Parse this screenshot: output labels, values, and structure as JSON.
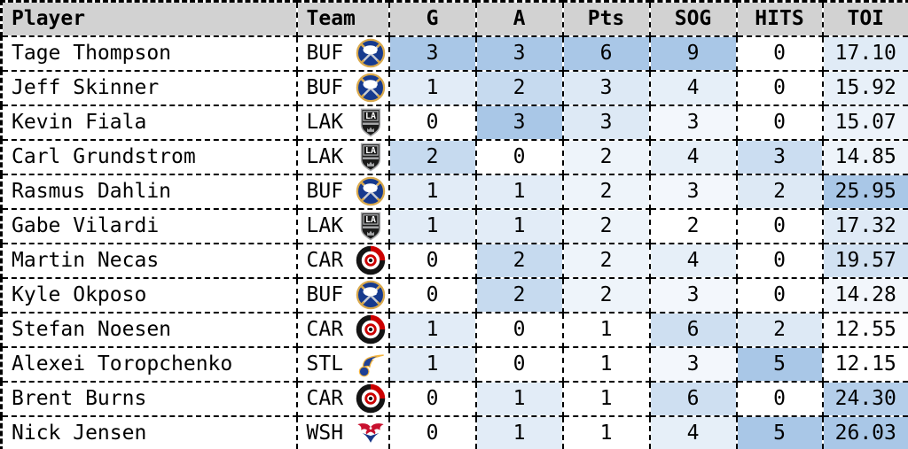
{
  "colors": {
    "header_bg": "#d2d2d2",
    "border": "#000000",
    "text": "#000000",
    "heat_min": "#ffffff",
    "heat_max": "#a9c7e7"
  },
  "team_brand_colors": {
    "BUF": {
      "primary": "#163a8e",
      "accent": "#d9a94c"
    },
    "LAK": {
      "primary": "#1a1a1a",
      "accent": "#a7a8aa"
    },
    "CAR": {
      "primary": "#cc0000",
      "accent": "#141414"
    },
    "STL": {
      "primary": "#1f4096",
      "accent": "#f4b53f"
    },
    "WSH": {
      "primary": "#c8102e",
      "accent": "#19398a"
    }
  },
  "chart_data": {
    "type": "table",
    "columns": [
      {
        "key": "player",
        "label": "Player"
      },
      {
        "key": "team",
        "label": "Team"
      },
      {
        "key": "g",
        "label": "G"
      },
      {
        "key": "a",
        "label": "A"
      },
      {
        "key": "pts",
        "label": "Pts"
      },
      {
        "key": "sog",
        "label": "SOG"
      },
      {
        "key": "hits",
        "label": "HITS"
      },
      {
        "key": "toi",
        "label": "TOI"
      }
    ],
    "rows": [
      {
        "player": "Tage Thompson",
        "team": "BUF",
        "g": 3,
        "a": 3,
        "pts": 6,
        "sog": 9,
        "hits": 0,
        "toi": "17.10"
      },
      {
        "player": "Jeff Skinner",
        "team": "BUF",
        "g": 1,
        "a": 2,
        "pts": 3,
        "sog": 4,
        "hits": 0,
        "toi": "15.92"
      },
      {
        "player": "Kevin Fiala",
        "team": "LAK",
        "g": 0,
        "a": 3,
        "pts": 3,
        "sog": 3,
        "hits": 0,
        "toi": "15.07"
      },
      {
        "player": "Carl Grundstrom",
        "team": "LAK",
        "g": 2,
        "a": 0,
        "pts": 2,
        "sog": 4,
        "hits": 3,
        "toi": "14.85"
      },
      {
        "player": "Rasmus Dahlin",
        "team": "BUF",
        "g": 1,
        "a": 1,
        "pts": 2,
        "sog": 3,
        "hits": 2,
        "toi": "25.95"
      },
      {
        "player": "Gabe Vilardi",
        "team": "LAK",
        "g": 1,
        "a": 1,
        "pts": 2,
        "sog": 2,
        "hits": 0,
        "toi": "17.32"
      },
      {
        "player": "Martin Necas",
        "team": "CAR",
        "g": 0,
        "a": 2,
        "pts": 2,
        "sog": 4,
        "hits": 0,
        "toi": "19.57"
      },
      {
        "player": "Kyle Okposo",
        "team": "BUF",
        "g": 0,
        "a": 2,
        "pts": 2,
        "sog": 3,
        "hits": 0,
        "toi": "14.28"
      },
      {
        "player": "Stefan Noesen",
        "team": "CAR",
        "g": 1,
        "a": 0,
        "pts": 1,
        "sog": 6,
        "hits": 2,
        "toi": "12.55"
      },
      {
        "player": "Alexei Toropchenko",
        "team": "STL",
        "g": 1,
        "a": 0,
        "pts": 1,
        "sog": 3,
        "hits": 5,
        "toi": "12.15"
      },
      {
        "player": "Brent Burns",
        "team": "CAR",
        "g": 0,
        "a": 1,
        "pts": 1,
        "sog": 6,
        "hits": 0,
        "toi": "24.30"
      },
      {
        "player": "Nick Jensen",
        "team": "WSH",
        "g": 0,
        "a": 1,
        "pts": 1,
        "sog": 4,
        "hits": 5,
        "toi": "26.03"
      }
    ],
    "heatmap": {
      "columns": [
        "g",
        "a",
        "pts",
        "sog",
        "hits",
        "toi"
      ],
      "min_color": "#ffffff",
      "max_color": "#a9c7e7",
      "normalization": "per-column min-max"
    },
    "legend_position": "none",
    "grid": "dashed-black-all-cells"
  }
}
